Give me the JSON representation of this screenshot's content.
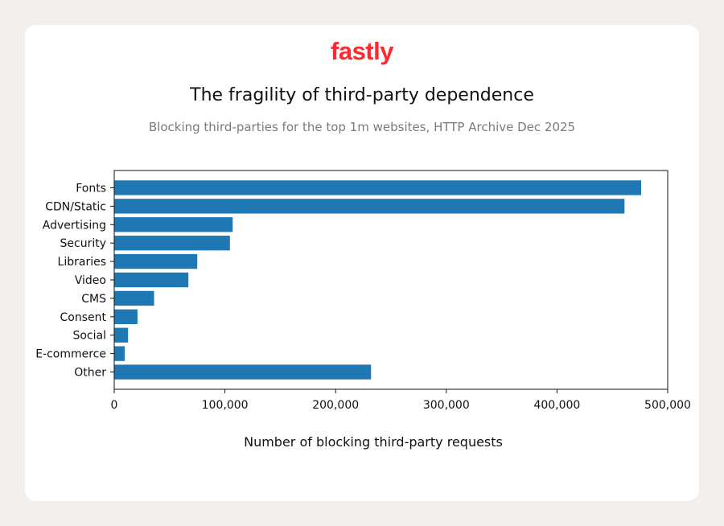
{
  "brand": {
    "logo_text": "fastly",
    "logo_color": "#ff282d"
  },
  "chart_data": {
    "type": "bar",
    "orientation": "horizontal",
    "title": "The fragility of third-party dependence",
    "subtitle": "Blocking third-parties for the top 1m websites, HTTP Archive Dec 2025",
    "xlabel": "Number of blocking third-party requests",
    "ylabel": "",
    "categories": [
      "Fonts",
      "CDN/Static",
      "Advertising",
      "Security",
      "Libraries",
      "Video",
      "CMS",
      "Consent",
      "Social",
      "E-commerce",
      "Other"
    ],
    "values": [
      476000,
      461000,
      107000,
      104500,
      75000,
      67000,
      36000,
      21000,
      12500,
      9500,
      232000
    ],
    "xlim": [
      0,
      500000
    ],
    "xticks": [
      0,
      100000,
      200000,
      300000,
      400000,
      500000
    ],
    "xtick_labels": [
      "0",
      "100,000",
      "200,000",
      "300,000",
      "400,000",
      "500,000"
    ],
    "bar_color": "#1f77b4",
    "grid": false,
    "legend": "none"
  }
}
